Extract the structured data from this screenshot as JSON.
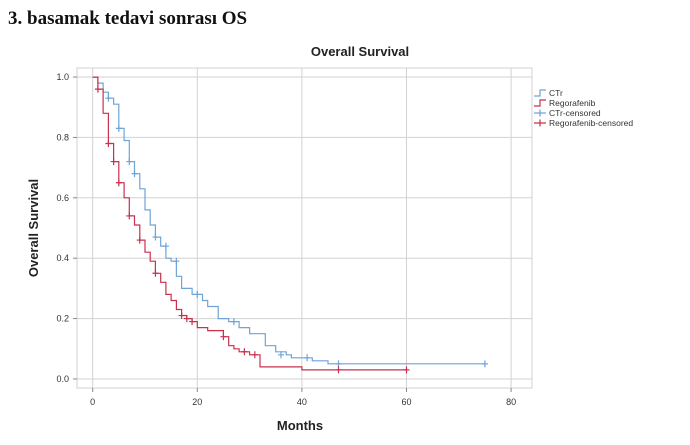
{
  "heading": "3. basamak tedavi sonrası OS",
  "chart_data": {
    "type": "line",
    "title": "Overall Survival",
    "xlabel": "Months",
    "ylabel": "Overall Survival",
    "xlim": [
      -3,
      84
    ],
    "ylim": [
      -0.03,
      1.03
    ],
    "x_ticks": [
      0,
      20,
      40,
      60,
      80
    ],
    "y_ticks": [
      0.0,
      0.2,
      0.4,
      0.6,
      0.8,
      1.0
    ],
    "x_tick_labels": [
      "0",
      "20",
      "40",
      "60",
      "80"
    ],
    "y_tick_labels": [
      "0.0",
      "0.2",
      "0.4",
      "0.6",
      "0.8",
      "1.0"
    ],
    "grid": true,
    "legend_position": "right",
    "legend": [
      "CTr",
      "Regorafenib",
      "CTr-censored",
      "Regorafenib-censored"
    ],
    "series": [
      {
        "name": "CTr",
        "color": "#6fa4d8",
        "step": [
          [
            0,
            1.0
          ],
          [
            1,
            0.98
          ],
          [
            2,
            0.95
          ],
          [
            3,
            0.93
          ],
          [
            4,
            0.91
          ],
          [
            5,
            0.83
          ],
          [
            6,
            0.79
          ],
          [
            7,
            0.72
          ],
          [
            8,
            0.68
          ],
          [
            9,
            0.63
          ],
          [
            10,
            0.56
          ],
          [
            11,
            0.51
          ],
          [
            12,
            0.47
          ],
          [
            13,
            0.44
          ],
          [
            14,
            0.4
          ],
          [
            15,
            0.39
          ],
          [
            16,
            0.34
          ],
          [
            17,
            0.3
          ],
          [
            19,
            0.28
          ],
          [
            21,
            0.26
          ],
          [
            22,
            0.24
          ],
          [
            24,
            0.2
          ],
          [
            26,
            0.19
          ],
          [
            28,
            0.17
          ],
          [
            30,
            0.15
          ],
          [
            33,
            0.11
          ],
          [
            35,
            0.09
          ],
          [
            37,
            0.08
          ],
          [
            38,
            0.07
          ],
          [
            42,
            0.06
          ],
          [
            45,
            0.05
          ],
          [
            75,
            0.05
          ]
        ],
        "censored": [
          [
            3,
            0.93
          ],
          [
            5,
            0.83
          ],
          [
            7,
            0.72
          ],
          [
            8,
            0.68
          ],
          [
            12,
            0.47
          ],
          [
            14,
            0.44
          ],
          [
            16,
            0.39
          ],
          [
            20,
            0.28
          ],
          [
            27,
            0.19
          ],
          [
            36,
            0.08
          ],
          [
            41,
            0.07
          ],
          [
            47,
            0.05
          ],
          [
            75,
            0.05
          ]
        ]
      },
      {
        "name": "Regorafenib",
        "color": "#c8304e",
        "step": [
          [
            0,
            1.0
          ],
          [
            1,
            0.96
          ],
          [
            2,
            0.88
          ],
          [
            3,
            0.78
          ],
          [
            4,
            0.72
          ],
          [
            5,
            0.65
          ],
          [
            6,
            0.6
          ],
          [
            7,
            0.54
          ],
          [
            8,
            0.51
          ],
          [
            9,
            0.46
          ],
          [
            10,
            0.42
          ],
          [
            11,
            0.39
          ],
          [
            12,
            0.35
          ],
          [
            13,
            0.32
          ],
          [
            14,
            0.28
          ],
          [
            15,
            0.26
          ],
          [
            16,
            0.23
          ],
          [
            17,
            0.21
          ],
          [
            18,
            0.2
          ],
          [
            19,
            0.19
          ],
          [
            20,
            0.17
          ],
          [
            22,
            0.16
          ],
          [
            25,
            0.14
          ],
          [
            26,
            0.11
          ],
          [
            27,
            0.1
          ],
          [
            28,
            0.09
          ],
          [
            30,
            0.08
          ],
          [
            32,
            0.04
          ],
          [
            40,
            0.03
          ],
          [
            60,
            0.03
          ]
        ],
        "censored": [
          [
            1,
            0.96
          ],
          [
            3,
            0.78
          ],
          [
            4,
            0.72
          ],
          [
            5,
            0.65
          ],
          [
            7,
            0.54
          ],
          [
            9,
            0.46
          ],
          [
            12,
            0.35
          ],
          [
            17,
            0.21
          ],
          [
            18,
            0.2
          ],
          [
            19,
            0.19
          ],
          [
            25,
            0.14
          ],
          [
            29,
            0.09
          ],
          [
            31,
            0.08
          ],
          [
            47,
            0.03
          ],
          [
            60,
            0.03
          ]
        ]
      }
    ]
  }
}
